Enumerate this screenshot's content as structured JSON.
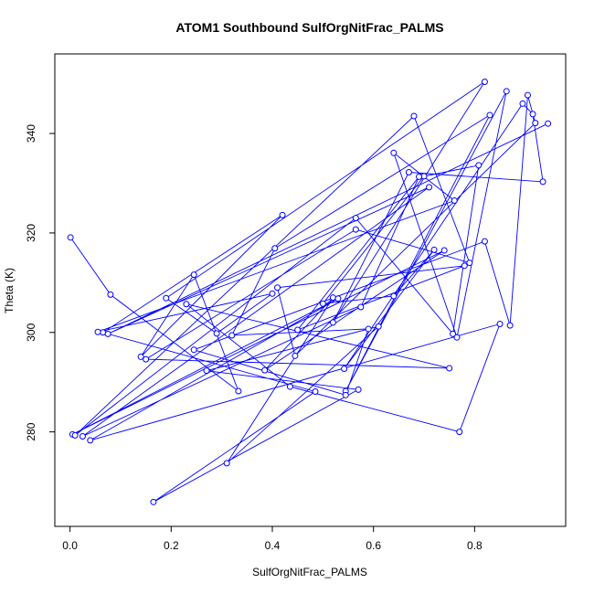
{
  "chart_data": {
    "type": "line",
    "title": "ATOM1 Southbound SulfOrgNitFrac_PALMS",
    "xlabel": "SulfOrgNitFrac_PALMS",
    "ylabel": "Theta (K)",
    "xlim": [
      -0.03,
      0.98
    ],
    "ylim": [
      261,
      356
    ],
    "xticks": [
      0.0,
      0.2,
      0.4,
      0.6,
      0.8
    ],
    "xtick_labels": [
      "0.0",
      "0.2",
      "0.4",
      "0.6",
      "0.8"
    ],
    "yticks": [
      280,
      300,
      320,
      340
    ],
    "ytick_labels": [
      "280",
      "300",
      "320",
      "340"
    ],
    "grid": false,
    "legend": "none",
    "series": [
      {
        "color": "#0000ff",
        "marker": "open-circle",
        "line": true,
        "points": [
          [
            0.001,
            319.1
          ],
          [
            0.08,
            307.6
          ],
          [
            0.333,
            288.2
          ],
          [
            0.245,
            311.6
          ],
          [
            0.14,
            295.1
          ],
          [
            0.42,
            323.6
          ],
          [
            0.065,
            300.0
          ],
          [
            0.485,
            288.1
          ],
          [
            0.165,
            265.9
          ],
          [
            0.57,
            288.5
          ],
          [
            0.27,
            292.3
          ],
          [
            0.61,
            301.2
          ],
          [
            0.31,
            273.7
          ],
          [
            0.52,
            307.0
          ],
          [
            0.385,
            292.4
          ],
          [
            0.74,
            316.5
          ],
          [
            0.005,
            279.5
          ],
          [
            0.53,
            306.8
          ],
          [
            0.04,
            278.3
          ],
          [
            0.85,
            301.7
          ],
          [
            0.77,
            280.0
          ],
          [
            0.435,
            289.1
          ],
          [
            0.23,
            305.7
          ],
          [
            0.75,
            292.8
          ],
          [
            0.15,
            294.6
          ],
          [
            0.565,
            320.7
          ],
          [
            0.79,
            314.0
          ],
          [
            0.68,
            343.5
          ],
          [
            0.01,
            279.3
          ],
          [
            0.565,
            323.0
          ],
          [
            0.757,
            299.7
          ],
          [
            0.808,
            333.6
          ],
          [
            0.7,
            331.4
          ],
          [
            0.5,
            305.8
          ],
          [
            0.64,
            307.3
          ],
          [
            0.72,
            316.6
          ],
          [
            0.542,
            292.7
          ],
          [
            0.895,
            346.0
          ],
          [
            0.915,
            343.9
          ],
          [
            0.935,
            330.3
          ],
          [
            0.67,
            332.2
          ],
          [
            0.52,
            302.0
          ],
          [
            0.82,
            350.4
          ],
          [
            0.19,
            306.9
          ],
          [
            0.29,
            299.8
          ],
          [
            0.4,
            307.8
          ],
          [
            0.055,
            300.1
          ],
          [
            0.76,
            326.5
          ],
          [
            0.64,
            336.1
          ],
          [
            0.765,
            299.0
          ],
          [
            0.863,
            348.5
          ],
          [
            0.545,
            288.2
          ],
          [
            0.83,
            343.7
          ],
          [
            0.405,
            316.9
          ],
          [
            0.32,
            299.4
          ],
          [
            0.59,
            300.7
          ],
          [
            0.545,
            287.4
          ],
          [
            0.245,
            296.5
          ],
          [
            0.82,
            318.3
          ],
          [
            0.87,
            301.4
          ],
          [
            0.905,
            347.7
          ],
          [
            0.92,
            342.1
          ],
          [
            0.445,
            295.3
          ],
          [
            0.41,
            309.0
          ],
          [
            0.78,
            313.4
          ],
          [
            0.45,
            300.5
          ],
          [
            0.69,
            331.3
          ],
          [
            0.575,
            305.1
          ],
          [
            0.025,
            279.1
          ],
          [
            0.71,
            329.2
          ],
          [
            0.075,
            299.7
          ],
          [
            0.945,
            342.0
          ]
        ]
      }
    ]
  }
}
